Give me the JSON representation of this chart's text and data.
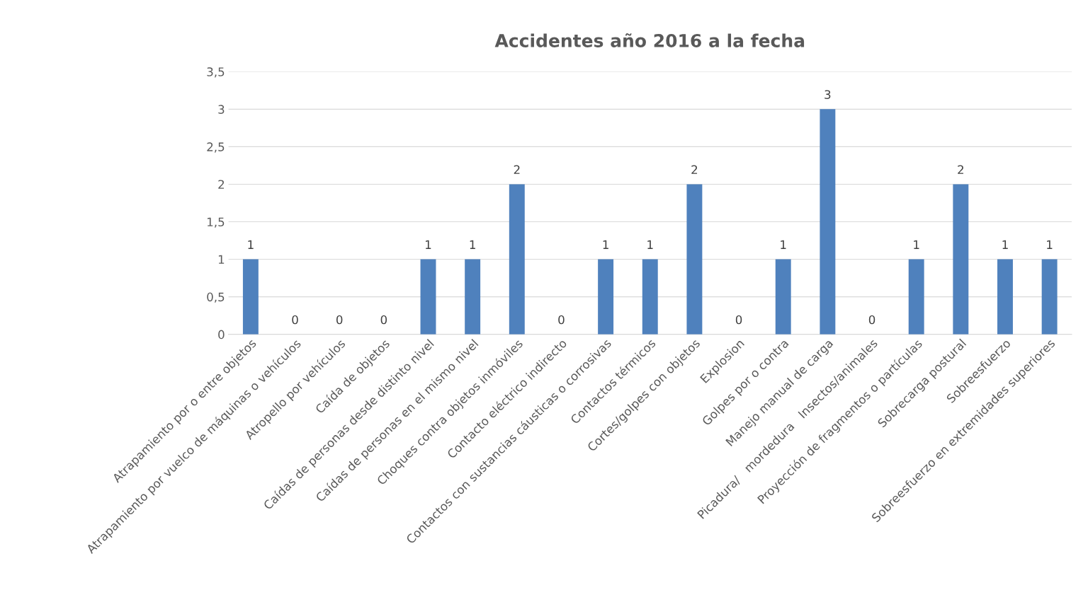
{
  "chart_data": {
    "type": "bar",
    "title": "Accidentes año 2016 a la fecha",
    "categories": [
      "Atrapamiento por o entre objetos",
      "Atrapamiento por vuelco de máquinas o vehículos",
      "Atropello por vehículos",
      "Caída de objetos",
      "Caídas de personas desde distinto nivel",
      "Caídas de personas en el mismo nivel",
      "Choques contra objetos inmóviles",
      "Contacto eléctrico indirecto",
      "Contactos con sustancias cáusticas o corrosivas",
      "Contactos térmicos",
      "Cortes/golpes con objetos",
      "Explosion",
      "Golpes por o contra",
      "Manejo manual de carga",
      "Picadura/   mordedura   Insectos/animales",
      "Proyección de fragmentos o partículas",
      "Sobrecarga postural",
      "Sobreesfuerzo",
      "Sobreesfuerzo en extremidades superiores"
    ],
    "values": [
      1,
      0,
      0,
      0,
      1,
      1,
      2,
      0,
      1,
      1,
      2,
      0,
      1,
      3,
      0,
      1,
      2,
      1,
      1
    ],
    "color": "#4f81bd",
    "ylim": [
      0,
      3.5
    ],
    "yticks": [
      {
        "value": 0,
        "label": "0"
      },
      {
        "value": 0.5,
        "label": "0,5"
      },
      {
        "value": 1,
        "label": "1"
      },
      {
        "value": 1.5,
        "label": "1,5"
      },
      {
        "value": 2,
        "label": "2"
      },
      {
        "value": 2.5,
        "label": "2,5"
      },
      {
        "value": 3,
        "label": "3"
      },
      {
        "value": 3.5,
        "label": "3,5"
      }
    ],
    "grid": "y",
    "data_labels": true
  }
}
